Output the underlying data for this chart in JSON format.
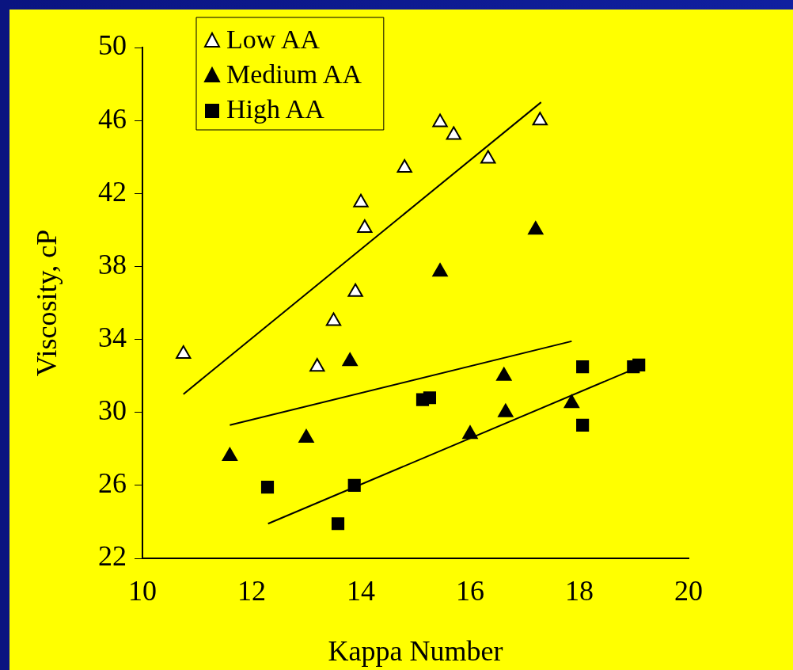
{
  "chart_data": {
    "type": "scatter",
    "xlabel": "Kappa Number",
    "ylabel": "Viscosity, cP",
    "xlim": [
      10,
      20
    ],
    "xticks": [
      10,
      12,
      14,
      16,
      18,
      20
    ],
    "ylim": [
      22,
      50
    ],
    "yticks": [
      22,
      26,
      30,
      34,
      38,
      42,
      46,
      50
    ],
    "grid": false,
    "legend": "top left",
    "series": [
      {
        "name": "Low AA",
        "color": "#ffffff",
        "marker": "triangle",
        "x": [
          10.75,
          13.2,
          13.5,
          13.9,
          14.0,
          14.07,
          14.8,
          15.45,
          15.7,
          16.33,
          17.28
        ],
        "values": [
          33.2,
          32.5,
          35.0,
          36.6,
          41.5,
          40.1,
          43.4,
          45.9,
          45.2,
          43.9,
          46.0
        ]
      },
      {
        "name": "Medium AA",
        "color": "#000000",
        "marker": "triangle",
        "x": [
          11.6,
          13.0,
          13.8,
          15.45,
          17.2,
          16.62,
          16.0,
          16.65,
          17.86
        ],
        "values": [
          27.6,
          28.6,
          32.8,
          37.7,
          40.0,
          32.0,
          28.8,
          30.0,
          30.5
        ]
      },
      {
        "name": "High AA",
        "color": "#000000",
        "marker": "square",
        "x": [
          12.29,
          13.58,
          13.88,
          15.13,
          15.26,
          18.06,
          18.06,
          18.99,
          19.09
        ],
        "values": [
          25.9,
          23.9,
          26.0,
          30.7,
          30.8,
          32.5,
          29.3,
          32.5,
          32.6
        ]
      },
      {
        "type": "line",
        "color": "#000000",
        "marker": "none",
        "x": [
          10.75,
          17.3
        ],
        "values": [
          31.0,
          47.0
        ]
      },
      {
        "type": "line",
        "color": "#000000",
        "marker": "none",
        "x": [
          11.6,
          17.86
        ],
        "values": [
          29.3,
          33.9
        ]
      },
      {
        "type": "line",
        "color": "#000000",
        "marker": "none",
        "x": [
          12.3,
          19.1
        ],
        "values": [
          23.9,
          32.5
        ]
      }
    ]
  }
}
